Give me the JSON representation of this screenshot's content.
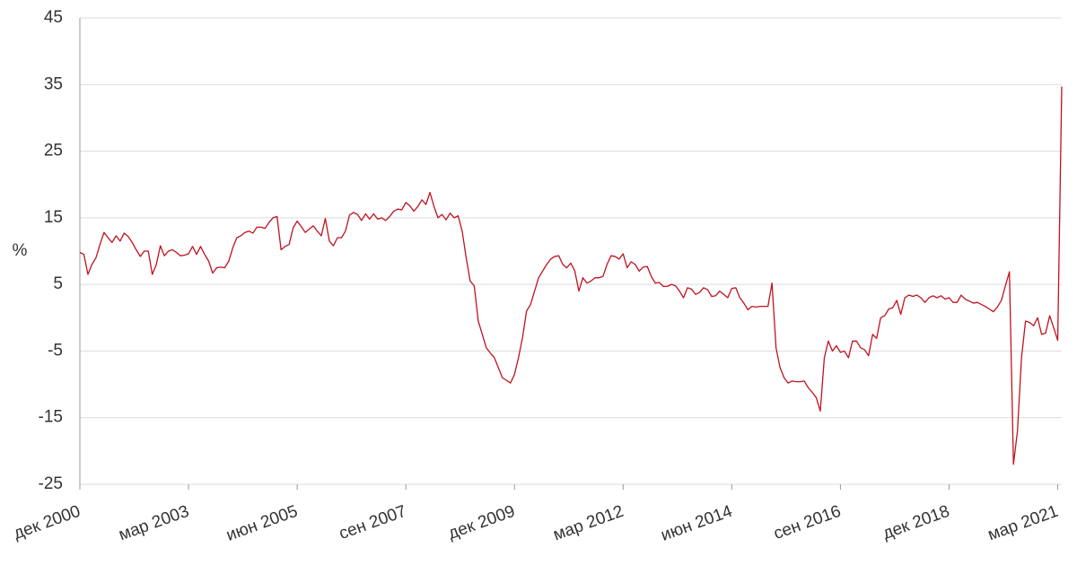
{
  "chart_data": {
    "type": "line",
    "y_label": "%",
    "categories": [
      "дек 2000",
      null,
      null,
      null,
      null,
      null,
      null,
      null,
      null,
      null,
      null,
      null,
      null,
      null,
      null,
      null,
      null,
      null,
      null,
      null,
      null,
      null,
      null,
      null,
      null,
      null,
      null,
      "мар 2003",
      null,
      null,
      null,
      null,
      null,
      null,
      null,
      null,
      null,
      null,
      null,
      null,
      null,
      null,
      null,
      null,
      null,
      null,
      null,
      null,
      null,
      null,
      null,
      null,
      null,
      null,
      "июн 2005",
      null,
      null,
      null,
      null,
      null,
      null,
      null,
      null,
      null,
      null,
      null,
      null,
      null,
      null,
      null,
      null,
      null,
      null,
      null,
      null,
      null,
      null,
      null,
      null,
      null,
      null,
      "сен 2007",
      null,
      null,
      null,
      null,
      null,
      null,
      null,
      null,
      null,
      null,
      null,
      null,
      null,
      null,
      null,
      null,
      null,
      null,
      null,
      null,
      null,
      null,
      null,
      null,
      null,
      null,
      "дек 2009",
      null,
      null,
      null,
      null,
      null,
      null,
      null,
      null,
      null,
      null,
      null,
      null,
      null,
      null,
      null,
      null,
      null,
      null,
      null,
      null,
      null,
      null,
      null,
      null,
      null,
      null,
      "мар 2012",
      null,
      null,
      null,
      null,
      null,
      null,
      null,
      null,
      null,
      null,
      null,
      null,
      null,
      null,
      null,
      null,
      null,
      null,
      null,
      null,
      null,
      null,
      null,
      null,
      null,
      null,
      "июн 2014",
      null,
      null,
      null,
      null,
      null,
      null,
      null,
      null,
      null,
      null,
      null,
      null,
      null,
      null,
      null,
      null,
      null,
      null,
      null,
      null,
      null,
      null,
      null,
      null,
      null,
      null,
      "сен 2016",
      null,
      null,
      null,
      null,
      null,
      null,
      null,
      null,
      null,
      null,
      null,
      null,
      null,
      null,
      null,
      null,
      null,
      null,
      null,
      null,
      null,
      null,
      null,
      null,
      null,
      null,
      "дек 2018",
      null,
      null,
      null,
      null,
      null,
      null,
      null,
      null,
      null,
      null,
      null,
      null,
      null,
      null,
      null,
      null,
      null,
      null,
      null,
      null,
      null,
      null,
      null,
      null,
      null,
      null,
      "мар 2021",
      null
    ],
    "series": [
      {
        "color": "#c0121f",
        "values": [
          9.8,
          9.5,
          6.5,
          8,
          9,
          11,
          12.8,
          12,
          11.3,
          12.3,
          11.5,
          12.7,
          12.2,
          11.3,
          10.2,
          9.2,
          10,
          10,
          6.5,
          8,
          10.8,
          9.3,
          10,
          10.2,
          9.8,
          9.3,
          9.4,
          9.6,
          10.7,
          9.5,
          10.7,
          9.5,
          8.5,
          6.7,
          7.5,
          7.6,
          7.5,
          8.5,
          10.5,
          12,
          12.3,
          12.8,
          13,
          12.7,
          13.6,
          13.6,
          13.4,
          14.3,
          15,
          15.2,
          10.2,
          10.7,
          11,
          13.5,
          14.5,
          13.7,
          12.8,
          13.3,
          13.8,
          13,
          12.3,
          14.9,
          11.5,
          10.8,
          12,
          12,
          13,
          15.4,
          15.8,
          15.5,
          14.6,
          15.6,
          14.8,
          15.6,
          14.8,
          15,
          14.6,
          15.2,
          16,
          16.3,
          16.2,
          17.3,
          16.8,
          16,
          16.7,
          17.7,
          17,
          18.8,
          16.7,
          15,
          15.5,
          14.7,
          15.7,
          15,
          15.3,
          13,
          9,
          5.5,
          4.8,
          -0.5,
          -2.5,
          -4.5,
          -5.3,
          -6,
          -7.5,
          -9,
          -9.4,
          -9.8,
          -8.5,
          -6,
          -3,
          1,
          2,
          4,
          6,
          7,
          8,
          8.8,
          9.2,
          9.3,
          8,
          7.5,
          8.2,
          7,
          4,
          6,
          5.2,
          5.5,
          6,
          6,
          6.2,
          8,
          9.3,
          9.2,
          8.8,
          9.6,
          7.5,
          8.4,
          8,
          7,
          7.6,
          7.7,
          6.2,
          5.2,
          5.3,
          4.7,
          4.7,
          5,
          4.8,
          4,
          3,
          4.5,
          4.3,
          3.5,
          3.8,
          4.5,
          4.2,
          3.2,
          3.3,
          4,
          3.5,
          3,
          4.4,
          4.5,
          3,
          2.2,
          1.2,
          1.7,
          1.6,
          1.7,
          1.7,
          1.7,
          5.2,
          -4.5,
          -7.5,
          -9,
          -9.8,
          -9.5,
          -9.6,
          -9.6,
          -9.5,
          -10.5,
          -11.2,
          -12,
          -14,
          -6,
          -3.5,
          -5,
          -4.2,
          -5.2,
          -5,
          -6,
          -3.5,
          -3.5,
          -4.5,
          -4.8,
          -5.7,
          -2.5,
          -3.1,
          0,
          0.3,
          1.3,
          1.5,
          2.6,
          0.5,
          3,
          3.4,
          3.2,
          3.4,
          3,
          2.3,
          3,
          3.3,
          3,
          3.3,
          2.8,
          3,
          2.3,
          2.3,
          3.4,
          2.8,
          2.5,
          2.2,
          2.3,
          2,
          1.7,
          1.3,
          0.9,
          1.6,
          2.6,
          4.8,
          6.9,
          -22,
          -17,
          -6,
          -0.5,
          -0.7,
          -1.2,
          0,
          -2.5,
          -2.3,
          0.3,
          -1.5,
          -3.4,
          34.7
        ]
      }
    ],
    "ylim": [
      -25,
      45
    ],
    "yticks": [
      45,
      35,
      25,
      15,
      5,
      -5,
      -15,
      -25
    ],
    "grid": true
  }
}
